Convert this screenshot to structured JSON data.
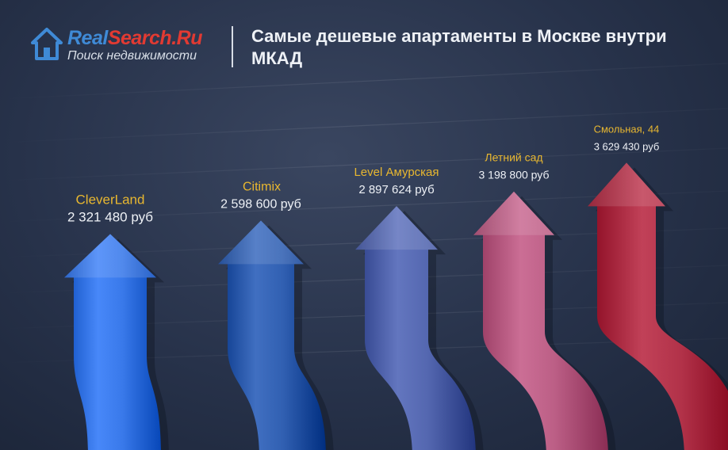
{
  "logo": {
    "brand_part1": "Real",
    "brand_part2": "Search.Ru",
    "subtitle": "Поиск недвижимости"
  },
  "header": {
    "title": "Самые дешевые апартаменты в Москве внутри МКАД"
  },
  "chart_data": {
    "type": "bar",
    "title": "Самые дешевые апартаменты в Москве внутри МКАД",
    "categories": [
      "CleverLand",
      "Citimix",
      "Level Амурская",
      "Летний сад",
      "Смольная, 44"
    ],
    "values": [
      2321480,
      2598600,
      2897624,
      3198800,
      3629430
    ],
    "value_labels": [
      "2 321 480 руб",
      "2 598 600 руб",
      "2 897 624 руб",
      "3 198 800 руб",
      "3 629 430 руб"
    ],
    "colors": [
      "#2f6fe0",
      "#2756a8",
      "#4a5da6",
      "#b2557c",
      "#a8283f"
    ],
    "grid": true,
    "legend": "none"
  }
}
